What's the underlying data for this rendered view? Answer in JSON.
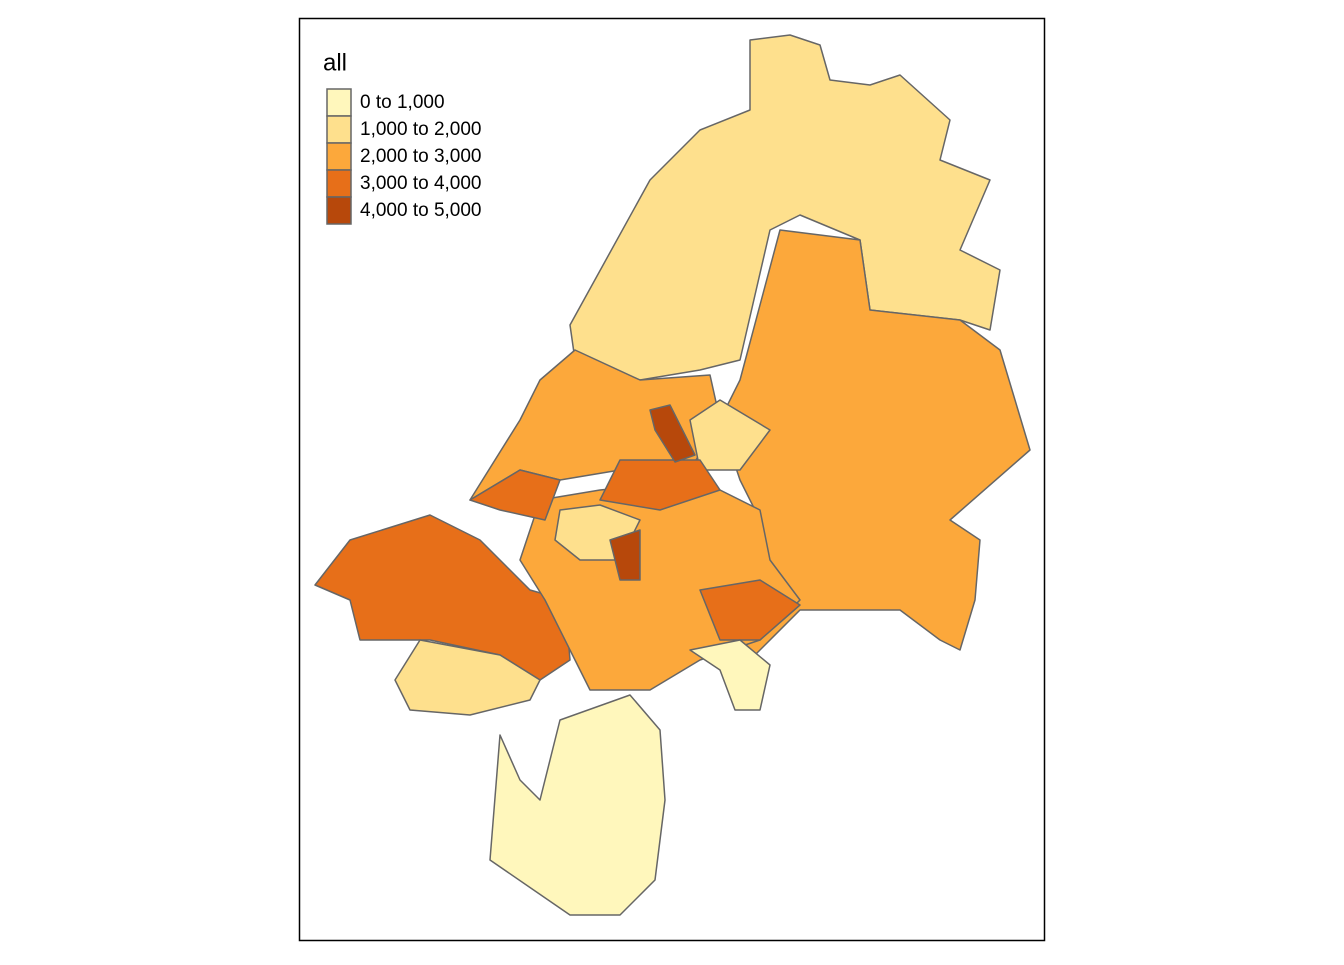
{
  "legend": {
    "title": "all",
    "items": [
      {
        "label": "0 to 1,000",
        "color": "#fff7bc"
      },
      {
        "label": "1,000 to 2,000",
        "color": "#fee08d"
      },
      {
        "label": "2,000 to 3,000",
        "color": "#fca83b"
      },
      {
        "label": "3,000 to 4,000",
        "color": "#e76f19"
      },
      {
        "label": "4,000 to 5,000",
        "color": "#b7480b"
      }
    ]
  }
}
